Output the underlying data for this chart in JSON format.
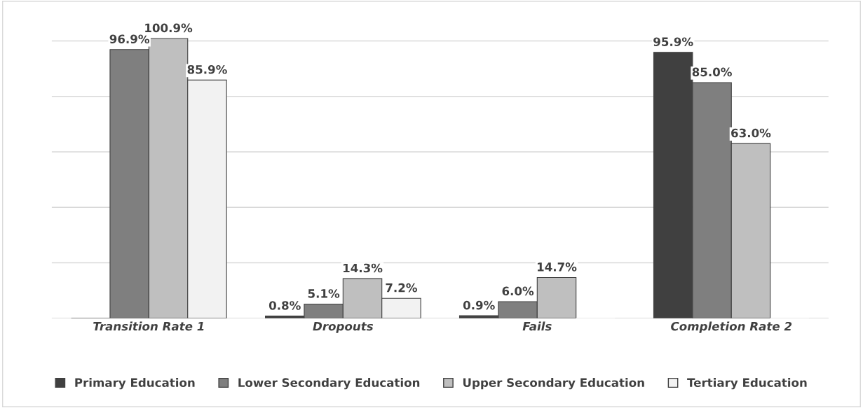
{
  "chart_data": {
    "type": "bar",
    "categories": [
      "Transition Rate 1",
      "Dropouts",
      "Fails",
      "Completion Rate 2"
    ],
    "series": [
      {
        "name": "Primary Education",
        "color": "#404040",
        "values": [
          0,
          0.8,
          0.9,
          95.9
        ],
        "value_labels": [
          null,
          "0.8%",
          "0.9%",
          "95.9%"
        ]
      },
      {
        "name": "Lower Secondary Education",
        "color": "#7f7f7f",
        "values": [
          96.9,
          5.1,
          6.0,
          85.0
        ],
        "value_labels": [
          "96.9%",
          "5.1%",
          "6.0%",
          "85.0%"
        ]
      },
      {
        "name": "Upper Secondary Education",
        "color": "#bfbfbf",
        "values": [
          100.9,
          14.3,
          14.7,
          63.0
        ],
        "value_labels": [
          "100.9%",
          "14.3%",
          "14.7%",
          "63.0%"
        ]
      },
      {
        "name": "Tertiary Education",
        "color": "#f2f2f2",
        "values": [
          85.9,
          7.2,
          0,
          0
        ],
        "value_labels": [
          "85.9%",
          "7.2%",
          null,
          null
        ]
      }
    ],
    "yticks": [
      {
        "value": 0,
        "label": null
      },
      {
        "value": 20,
        "label": null
      },
      {
        "value": 40,
        "label": null
      },
      {
        "value": 60,
        "label": null
      },
      {
        "value": 80,
        "label": null
      },
      {
        "value": 100,
        "label": null
      }
    ],
    "grid": "y",
    "legend": "bottom",
    "tick_labels": "x"
  }
}
